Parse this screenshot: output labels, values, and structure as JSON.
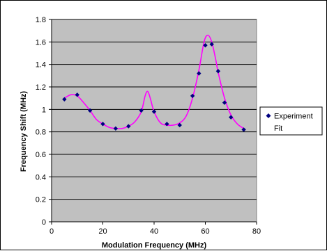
{
  "chart_data": {
    "type": "scatter",
    "xlabel": "Modulation Frequency (MHz)",
    "ylabel": "Frequency Shift (MHz)",
    "xlim": [
      0,
      80
    ],
    "ylim": [
      0,
      1.8
    ],
    "x_ticks": [
      0,
      20,
      40,
      60,
      80
    ],
    "y_ticks": [
      0,
      0.2,
      0.4,
      0.6,
      0.8,
      1,
      1.2,
      1.4,
      1.6,
      1.8
    ],
    "x_tick_labels": [
      "0",
      "20",
      "40",
      "60",
      "80"
    ],
    "y_tick_labels": [
      "0",
      "0.2",
      "0.4",
      "0.6",
      "0.8",
      "1",
      "1.2",
      "1.4",
      "1.6",
      "1.8"
    ],
    "grid": "horizontal",
    "legend_position": "right",
    "plot_background": "#c0c0c0",
    "series": [
      {
        "name": "Experiment",
        "type": "scatter",
        "color": "#000080",
        "marker": "diamond",
        "x": [
          5,
          10,
          15,
          20,
          25,
          30,
          35,
          40,
          45,
          50,
          55,
          57.5,
          60,
          62.5,
          65,
          67.5,
          70,
          75
        ],
        "y": [
          1.09,
          1.13,
          0.99,
          0.87,
          0.83,
          0.85,
          0.99,
          0.98,
          0.87,
          0.86,
          1.12,
          1.32,
          1.57,
          1.58,
          1.34,
          1.06,
          0.93,
          0.82
        ]
      },
      {
        "name": "Fit",
        "type": "line",
        "color": "#ff00ff",
        "x": [
          5,
          7.5,
          10,
          12.5,
          15,
          17.5,
          20,
          22.5,
          25,
          27.5,
          30,
          32.5,
          35,
          36.5,
          37.5,
          38.5,
          40,
          42.5,
          45,
          47.5,
          50,
          52.5,
          55,
          57.5,
          59.5,
          61,
          62.5,
          64,
          65,
          67.5,
          70,
          72.5,
          75
        ],
        "y": [
          1.1,
          1.13,
          1.12,
          1.06,
          0.99,
          0.91,
          0.87,
          0.84,
          0.83,
          0.83,
          0.85,
          0.89,
          0.98,
          1.12,
          1.16,
          1.1,
          0.98,
          0.88,
          0.86,
          0.86,
          0.88,
          0.94,
          1.1,
          1.35,
          1.6,
          1.66,
          1.6,
          1.45,
          1.33,
          1.1,
          0.95,
          0.87,
          0.83
        ]
      }
    ]
  }
}
